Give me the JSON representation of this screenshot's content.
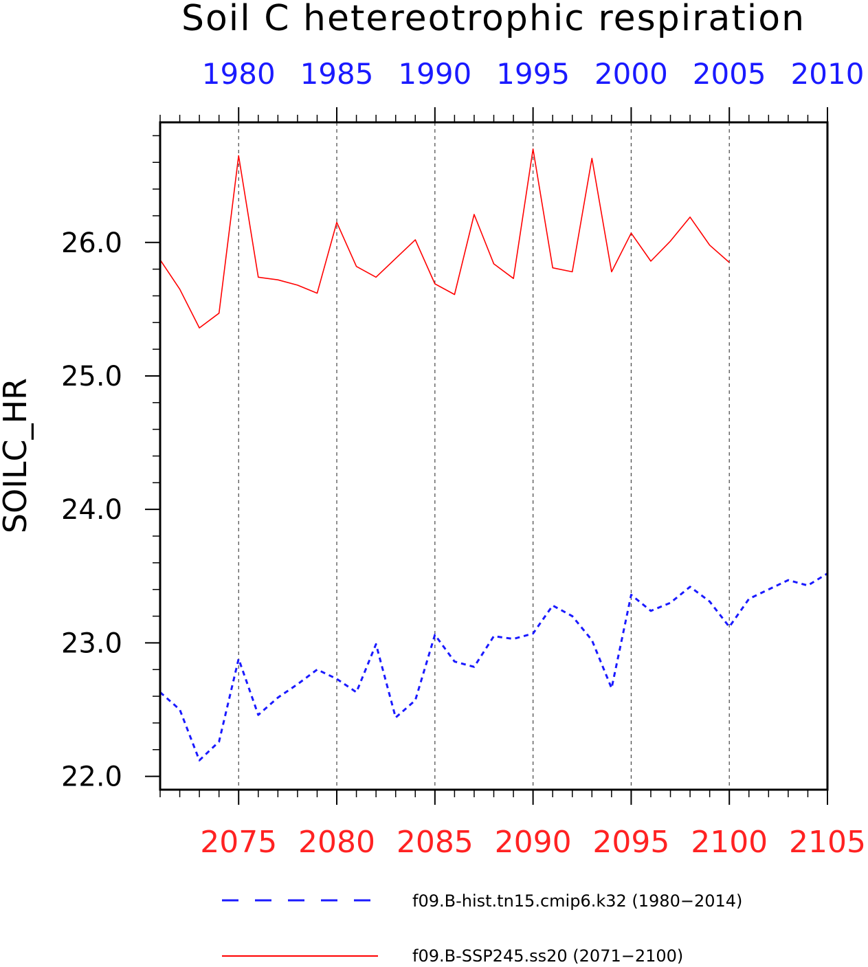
{
  "chart_data": {
    "type": "line",
    "title": "Soil C hetereotrophic respiration",
    "ylabel": "SOILC_HR",
    "ylim": [
      21.9,
      26.9
    ],
    "y_ticks": [
      "22.0",
      "23.0",
      "24.0",
      "25.0",
      "26.0"
    ],
    "y_tick_values": [
      22.0,
      23.0,
      24.0,
      25.0,
      26.0
    ],
    "top_axis": {
      "color": "#1a1aff",
      "ticks": [
        "1980",
        "1985",
        "1990",
        "1995",
        "2000",
        "2005",
        "2010"
      ],
      "range": [
        1976,
        2010
      ]
    },
    "bottom_axis": {
      "color": "#ff2222",
      "ticks": [
        "2075",
        "2080",
        "2085",
        "2090",
        "2095",
        "2100",
        "2105"
      ],
      "range": [
        2071,
        2105
      ]
    },
    "grid": "dashed vertical lines at bottom-axis ticks",
    "legend_position": "bottom",
    "series": [
      {
        "name": "f09.B-hist.tn15.cmip6.k32 (1980−2014)",
        "color": "#1a1aff",
        "style": "dashed",
        "x": [
          2071,
          2072,
          2073,
          2074,
          2075,
          2076,
          2077,
          2078,
          2079,
          2080,
          2081,
          2082,
          2083,
          2084,
          2085,
          2086,
          2087,
          2088,
          2089,
          2090,
          2091,
          2092,
          2093,
          2094,
          2095,
          2096,
          2097,
          2098,
          2099,
          2100,
          2101,
          2102,
          2103,
          2104,
          2105
        ],
        "values": [
          22.63,
          22.5,
          22.12,
          22.26,
          22.88,
          22.46,
          22.59,
          22.69,
          22.8,
          22.73,
          22.63,
          22.99,
          22.44,
          22.57,
          23.06,
          22.86,
          22.82,
          23.05,
          23.03,
          23.07,
          23.28,
          23.2,
          23.02,
          22.66,
          23.36,
          23.24,
          23.3,
          23.42,
          23.31,
          23.12,
          23.33,
          23.4,
          23.47,
          23.43,
          23.52
        ]
      },
      {
        "name": "f09.B-SSP245.ss20 (2071−2100)",
        "color": "#ff0000",
        "style": "solid",
        "x": [
          2071,
          2072,
          2073,
          2074,
          2075,
          2076,
          2077,
          2078,
          2079,
          2080,
          2081,
          2082,
          2083,
          2084,
          2085,
          2086,
          2087,
          2088,
          2089,
          2090,
          2091,
          2092,
          2093,
          2094,
          2095,
          2096,
          2097,
          2098,
          2099,
          2100
        ],
        "values": [
          25.87,
          25.65,
          25.36,
          25.47,
          26.65,
          25.74,
          25.72,
          25.68,
          25.62,
          26.15,
          25.82,
          25.74,
          25.88,
          26.02,
          25.69,
          25.61,
          26.21,
          25.84,
          25.73,
          26.7,
          25.81,
          25.78,
          26.63,
          25.78,
          26.07,
          25.86,
          26.01,
          26.19,
          25.98,
          25.85
        ]
      }
    ]
  }
}
